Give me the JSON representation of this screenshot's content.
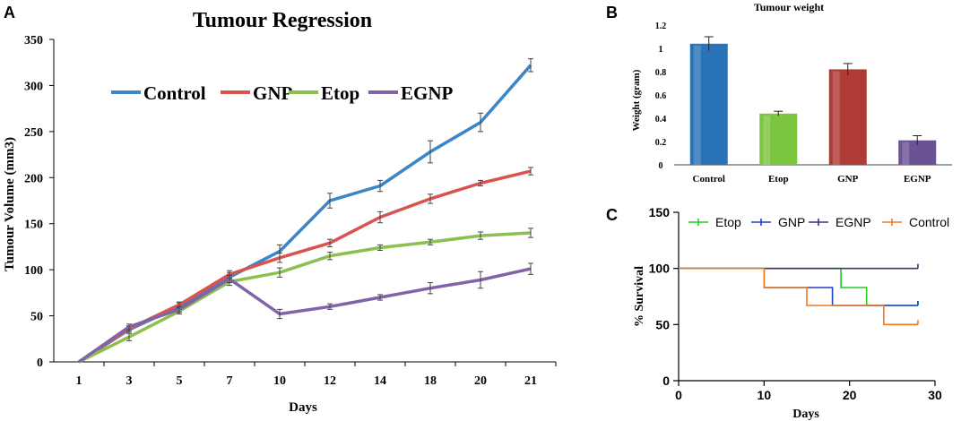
{
  "chart_data": [
    {
      "panel": "A",
      "type": "line",
      "title": "Tumour Regression",
      "xlabel": "Days",
      "ylabel": "Tumour Volume (mm3)",
      "categories": [
        "1",
        "3",
        "5",
        "7",
        "10",
        "12",
        "14",
        "18",
        "20",
        "21"
      ],
      "ylim": [
        0,
        350
      ],
      "yticks": [
        "0",
        "50",
        "100",
        "150",
        "200",
        "250",
        "300",
        "350"
      ],
      "legend_position": "top-center",
      "series": [
        {
          "name": "Control",
          "color": "#3a86c8",
          "values": [
            0,
            35,
            60,
            92,
            120,
            175,
            191,
            228,
            260,
            322
          ],
          "errors": [
            0,
            4,
            4,
            5,
            7,
            8,
            6,
            12,
            10,
            7
          ]
        },
        {
          "name": "GNP",
          "color": "#d9534f",
          "values": [
            0,
            36,
            62,
            95,
            113,
            129,
            157,
            177,
            194,
            207
          ],
          "errors": [
            0,
            3,
            3,
            4,
            5,
            4,
            6,
            5,
            3,
            4
          ]
        },
        {
          "name": "Etop",
          "color": "#8cbf4f",
          "values": [
            0,
            27,
            55,
            87,
            97,
            115,
            124,
            130,
            137,
            140
          ],
          "errors": [
            0,
            4,
            3,
            4,
            5,
            4,
            3,
            3,
            4,
            5
          ]
        },
        {
          "name": "EGNP",
          "color": "#8163a8",
          "values": [
            0,
            38,
            57,
            90,
            52,
            60,
            70,
            80,
            89,
            101
          ],
          "errors": [
            0,
            3,
            3,
            4,
            5,
            3,
            3,
            6,
            9,
            6
          ]
        }
      ]
    },
    {
      "panel": "B",
      "type": "bar",
      "title": "Tumour weight",
      "xlabel": "",
      "ylabel": "Weight (gram)",
      "categories": [
        "Control",
        "Etop",
        "GNP",
        "EGNP"
      ],
      "values": [
        1.04,
        0.44,
        0.82,
        0.21
      ],
      "errors": [
        0.06,
        0.02,
        0.05,
        0.04
      ],
      "colors": [
        "#2a73b8",
        "#7cc53f",
        "#b03a36",
        "#6a5294"
      ],
      "ylim": [
        0,
        1.2
      ],
      "yticks": [
        "0",
        "0.2",
        "0.4",
        "0.6",
        "0.8",
        "1",
        "1.2"
      ]
    },
    {
      "panel": "C",
      "type": "line",
      "title": "",
      "xlabel": "Days",
      "ylabel": "% Survival",
      "xlim": [
        0,
        30
      ],
      "ylim": [
        0,
        150
      ],
      "xticks": [
        "0",
        "10",
        "20",
        "30"
      ],
      "yticks": [
        "0",
        "50",
        "100",
        "150"
      ],
      "legend_position": "top",
      "series": [
        {
          "name": "Etop",
          "color": "#22cc22",
          "step_x": [
            0,
            19,
            19,
            22,
            22,
            28
          ],
          "step_y": [
            100,
            100,
            83,
            83,
            67,
            67
          ]
        },
        {
          "name": "GNP",
          "color": "#1f3fc4",
          "step_x": [
            0,
            10,
            10,
            18,
            18,
            28
          ],
          "step_y": [
            100,
            100,
            83,
            83,
            67,
            67
          ]
        },
        {
          "name": "EGNP",
          "color": "#4a2a7a",
          "step_x": [
            0,
            28
          ],
          "step_y": [
            100,
            100
          ]
        },
        {
          "name": "Control",
          "color": "#f07820",
          "step_x": [
            0,
            10,
            10,
            15,
            15,
            24,
            24,
            28
          ],
          "step_y": [
            100,
            100,
            83,
            83,
            67,
            67,
            50,
            50
          ]
        }
      ]
    }
  ],
  "labels": {
    "A": "A",
    "B": "B",
    "C": "C"
  }
}
